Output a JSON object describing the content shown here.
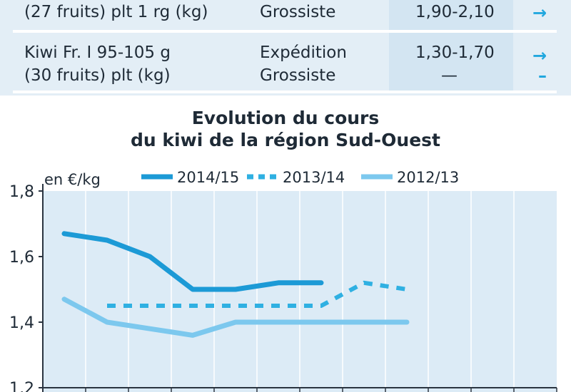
{
  "table": {
    "rows": [
      {
        "product_lines": [
          "(27 fruits) plt 1 rg (kg)"
        ],
        "stages": [
          "Grossiste"
        ],
        "prices": [
          "1,90-2,10"
        ],
        "trends": [
          "→"
        ]
      },
      {
        "product_lines": [
          "Kiwi Fr. I 95-105 g",
          "(30 fruits) plt (kg)"
        ],
        "stages": [
          "Expédition",
          "Grossiste"
        ],
        "prices": [
          "1,30-1,70",
          "—"
        ],
        "trends": [
          "→",
          "–"
        ]
      }
    ]
  },
  "colors": {
    "table_bg": "#e3eef6",
    "price_col_bg": "#d3e5f2",
    "plot_bg": "#dcebf6",
    "series_2014_15": "#1c9ad6",
    "series_2013_14": "#2fb0e2",
    "series_2012_13": "#7cc8ee",
    "arrow": "#21a7de"
  },
  "chart_data": {
    "type": "line",
    "title": "Evolution du cours du kiwi de la région Sud-Ouest",
    "title_lines": [
      "Evolution du cours",
      "du kiwi de la région Sud-Ouest"
    ],
    "ylabel": "en €/kg",
    "ylim": [
      1.2,
      1.8
    ],
    "yticks": [
      1.2,
      1.4,
      1.6,
      1.8
    ],
    "ytick_labels": [
      "1,2",
      "1,4",
      "1,6",
      "1,8"
    ],
    "x_slots": 12,
    "grid": "vertical",
    "legend_position": "top",
    "series": [
      {
        "name": "2014/15",
        "style": "solid",
        "x": [
          0.5,
          1.5,
          2.5,
          3.5,
          4.5,
          5.5,
          6.5
        ],
        "values": [
          1.67,
          1.65,
          1.6,
          1.5,
          1.5,
          1.52,
          1.52
        ]
      },
      {
        "name": "2013/14",
        "style": "dashed",
        "x": [
          1.5,
          2.5,
          3.5,
          4.5,
          5.5,
          6.5,
          7.5,
          8.5
        ],
        "values": [
          1.45,
          1.45,
          1.45,
          1.45,
          1.45,
          1.45,
          1.52,
          1.5
        ]
      },
      {
        "name": "2012/13",
        "style": "solid",
        "x": [
          0.5,
          1.5,
          2.5,
          3.5,
          4.5,
          5.5,
          6.5,
          7.5,
          8.5
        ],
        "values": [
          1.47,
          1.4,
          1.38,
          1.36,
          1.4,
          1.4,
          1.4,
          1.4,
          1.4
        ]
      }
    ]
  }
}
